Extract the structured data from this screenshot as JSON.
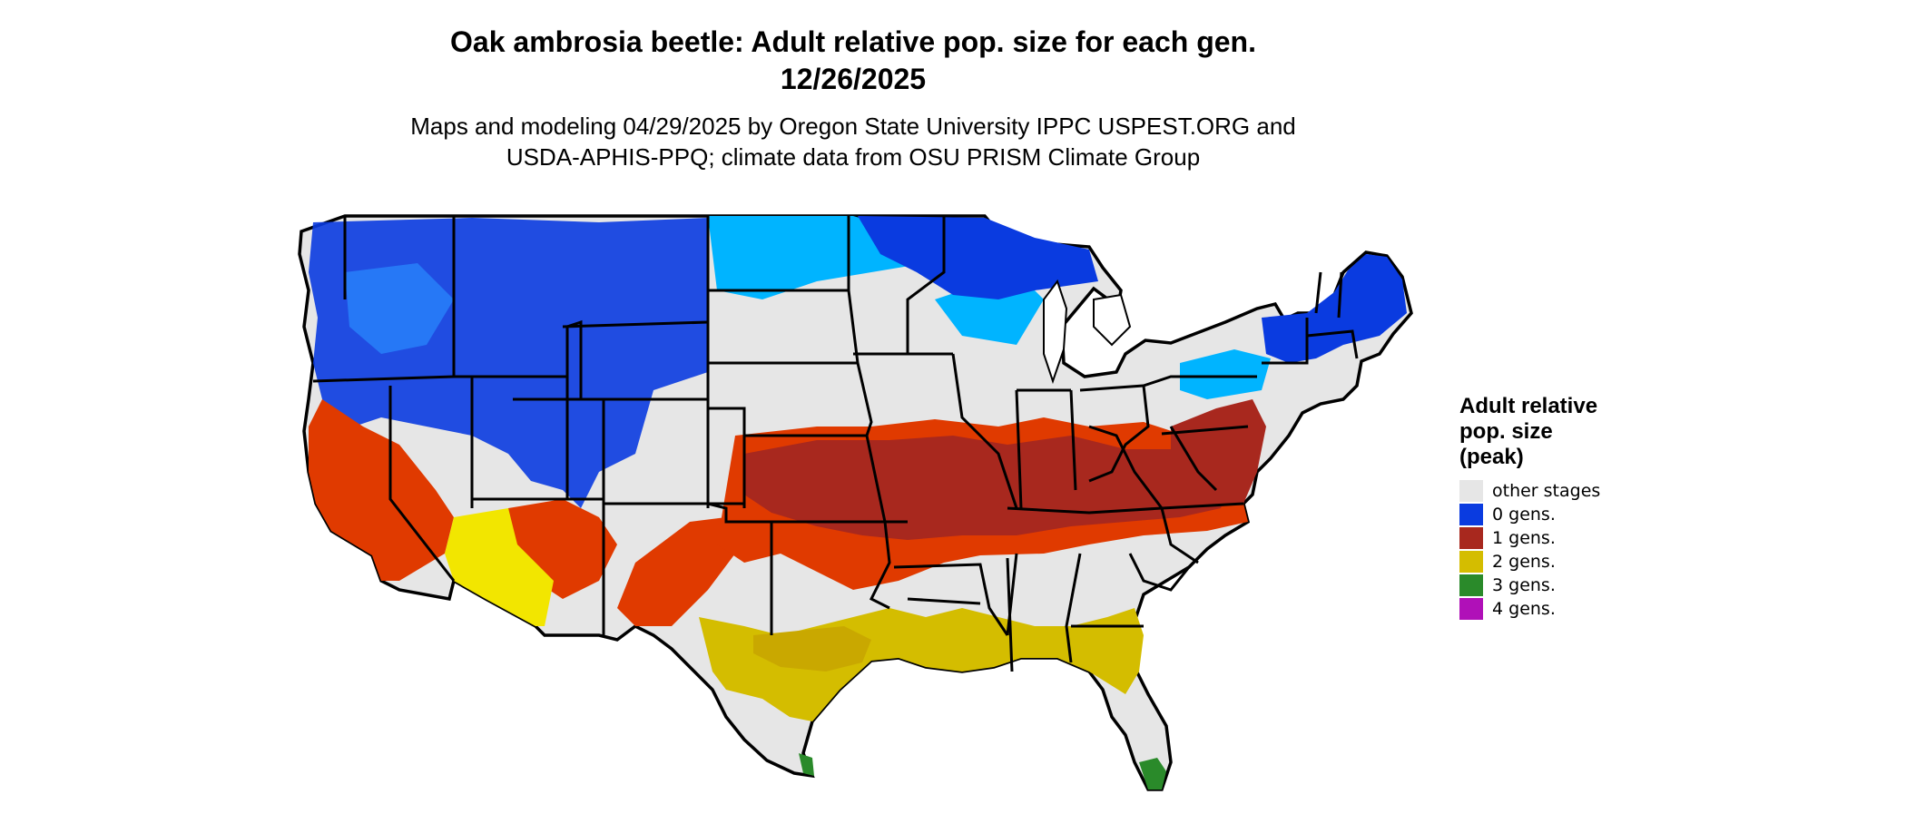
{
  "title": {
    "line1": "Oak ambrosia beetle: Adult relative pop. size for each gen.",
    "line2": "12/26/2025"
  },
  "subtitle": {
    "line1": "Maps and modeling 04/29/2025 by Oregon State University IPPC USPEST.ORG and",
    "line2": "USDA-APHIS-PPQ; climate data from OSU PRISM Climate Group"
  },
  "map": {
    "region": "conterminous United States",
    "boundaries_color": "#000000",
    "background_color": "#e6e6e6"
  },
  "legend": {
    "title_line1": "Adult relative",
    "title_line2": "pop. size",
    "title_line3": "(peak)",
    "items": [
      {
        "label": "other stages",
        "color": "#e6e6e6"
      },
      {
        "label": "0 gens.",
        "color": "#0a3be0"
      },
      {
        "label": "1 gens.",
        "color": "#a8281e"
      },
      {
        "label": "2 gens.",
        "color": "#d4bd00"
      },
      {
        "label": "3 gens.",
        "color": "#2a8a2a"
      },
      {
        "label": "4 gens.",
        "color": "#b010b8"
      }
    ]
  }
}
